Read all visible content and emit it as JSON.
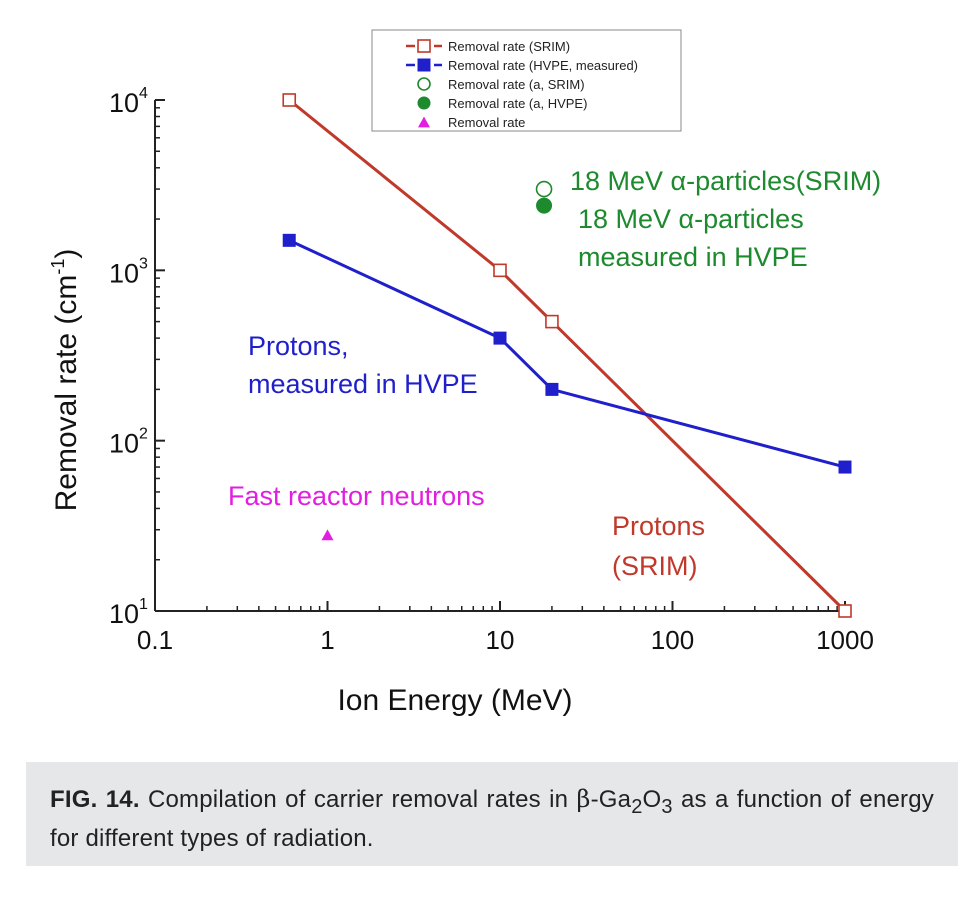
{
  "chart_data": {
    "type": "line",
    "xscale": "log",
    "yscale": "log",
    "xlabel": "Ion Energy (MeV)",
    "ylabel": "Removal rate (cm",
    "ylabel_sup": "-1",
    "ylabel_close": ")",
    "xlim": [
      0.1,
      1000
    ],
    "ylim": [
      10,
      10000
    ],
    "x_ticks": [
      {
        "value": 0.1,
        "label": "0.1"
      },
      {
        "value": 1,
        "label": "1"
      },
      {
        "value": 10,
        "label": "10"
      },
      {
        "value": 100,
        "label": "100"
      },
      {
        "value": 1000,
        "label": "1000"
      }
    ],
    "y_ticks": [
      {
        "value": 10,
        "base": "10",
        "exp": "1"
      },
      {
        "value": 100,
        "base": "10",
        "exp": "2"
      },
      {
        "value": 1000,
        "base": "10",
        "exp": "3"
      },
      {
        "value": 10000,
        "base": "10",
        "exp": "4"
      }
    ],
    "series": [
      {
        "name": "Removal rate (SRIM)",
        "color": "#c0392b",
        "marker": "square-open",
        "x": [
          0.6,
          10,
          20,
          1000
        ],
        "y": [
          10000,
          1000,
          500,
          10
        ]
      },
      {
        "name": "Removal rate (HVPE, measured)",
        "color": "#1f1fcc",
        "marker": "square-filled",
        "x": [
          0.6,
          10,
          20,
          1000
        ],
        "y": [
          1500,
          400,
          200,
          70
        ]
      },
      {
        "name": "Removal rate (a, SRIM)",
        "color": "#1e8a2e",
        "marker": "circle-open",
        "x": [
          18
        ],
        "y": [
          3000
        ]
      },
      {
        "name": "Removal rate (a, HVPE)",
        "color": "#1e8a2e",
        "marker": "circle-filled",
        "x": [
          18
        ],
        "y": [
          2400
        ]
      },
      {
        "name": "Removal rate",
        "color": "#e21ee0",
        "marker": "triangle-filled",
        "x": [
          1
        ],
        "y": [
          28
        ]
      }
    ],
    "annotations": {
      "alpha_srim": "18 MeV α-particles(SRIM)",
      "alpha_hvpe_1": "18 MeV α-particles",
      "alpha_hvpe_2": "measured in HVPE",
      "protons_hvpe_1": "Protons,",
      "protons_hvpe_2": "measured in HVPE",
      "neutrons": "Fast reactor neutrons",
      "protons_srim_1": "Protons",
      "protons_srim_2": "(SRIM)"
    }
  },
  "caption": {
    "label": "FIG. 14.",
    "text_before": " Compilation of carrier removal rates in ",
    "beta": "β",
    "formula_a": "-Ga",
    "sub1": "2",
    "formula_b": "O",
    "sub2": "3",
    "text_after": " as a function of energy for different types of radiation."
  },
  "colors": {
    "srim": "#c0392b",
    "hvpe": "#1f1fcc",
    "alpha": "#1e8a2e",
    "neutron": "#e21ee0"
  }
}
